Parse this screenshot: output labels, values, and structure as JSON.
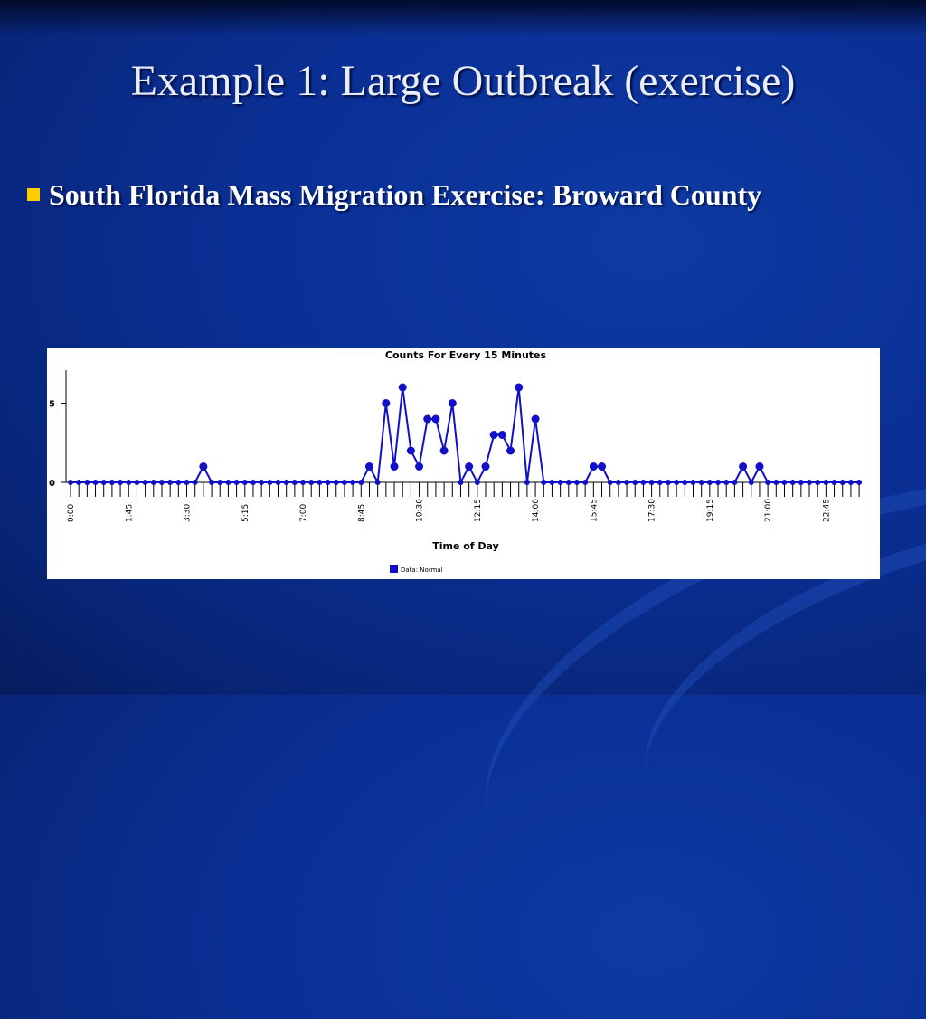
{
  "slide": {
    "title": "Example 1: Large Outbreak (exercise)",
    "bullet": "South Florida Mass Migration Exercise: Broward County"
  },
  "colors": {
    "background": "#0a2f94",
    "bullet_marker": "#ffcc00",
    "series": "#1010c8"
  },
  "chart_data": {
    "type": "line",
    "title": "Counts For Every 15 Minutes",
    "xlabel": "Time of Day",
    "ylabel": "",
    "ylim": [
      0,
      7
    ],
    "yticks": [
      0,
      5
    ],
    "grid": false,
    "legend_position": "bottom-center",
    "x_tick_labels": [
      "0:00",
      "1:45",
      "3:30",
      "5:15",
      "7:00",
      "8:45",
      "10:30",
      "12:15",
      "14:00",
      "15:45",
      "17:30",
      "19:15",
      "21:00",
      "22:45"
    ],
    "x_tick_label_every": 7,
    "series": [
      {
        "name": "Data: Normal",
        "color": "#1010c8",
        "interval_minutes": 15,
        "values": [
          0,
          0,
          0,
          0,
          0,
          0,
          0,
          0,
          0,
          0,
          0,
          0,
          0,
          0,
          0,
          0,
          1,
          0,
          0,
          0,
          0,
          0,
          0,
          0,
          0,
          0,
          0,
          0,
          0,
          0,
          0,
          0,
          0,
          0,
          0,
          0,
          1,
          0,
          5,
          1,
          6,
          2,
          1,
          4,
          4,
          2,
          5,
          0,
          1,
          0,
          1,
          3,
          3,
          2,
          6,
          0,
          4,
          0,
          0,
          0,
          0,
          0,
          0,
          1,
          1,
          0,
          0,
          0,
          0,
          0,
          0,
          0,
          0,
          0,
          0,
          0,
          0,
          0,
          0,
          0,
          0,
          1,
          0,
          1,
          0,
          0,
          0,
          0,
          0,
          0,
          0,
          0,
          0,
          0,
          0,
          0
        ]
      }
    ]
  }
}
